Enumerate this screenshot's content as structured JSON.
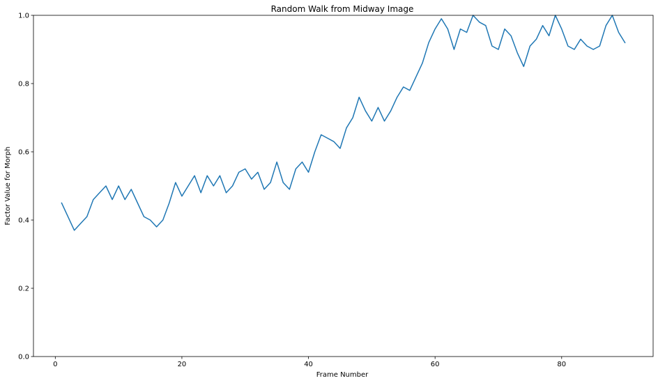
{
  "chart_data": {
    "type": "line",
    "title": "Random Walk from Midway Image",
    "xlabel": "Frame Number",
    "ylabel": "Factor Value for Morph",
    "xlim": [
      -3.45,
      94.45
    ],
    "ylim": [
      0.0,
      1.0
    ],
    "xticks": [
      0,
      20,
      40,
      60,
      80
    ],
    "xtick_labels": [
      "0",
      "20",
      "40",
      "60",
      "80"
    ],
    "yticks": [
      0.0,
      0.2,
      0.4,
      0.6,
      0.8,
      1.0
    ],
    "ytick_labels": [
      "0.0",
      "0.2",
      "0.4",
      "0.6",
      "0.8",
      "1.0"
    ],
    "grid": false,
    "series": [
      {
        "color": "#1f77b4",
        "x": [
          1,
          2,
          3,
          4,
          5,
          6,
          7,
          8,
          9,
          10,
          11,
          12,
          13,
          14,
          15,
          16,
          17,
          18,
          19,
          20,
          21,
          22,
          23,
          24,
          25,
          26,
          27,
          28,
          29,
          30,
          31,
          32,
          33,
          34,
          35,
          36,
          37,
          38,
          39,
          40,
          41,
          42,
          43,
          44,
          45,
          46,
          47,
          48,
          49,
          50,
          51,
          52,
          53,
          54,
          55,
          56,
          57,
          58,
          59,
          60,
          61,
          62,
          63,
          64,
          65,
          66,
          67,
          68,
          69,
          70,
          71,
          72,
          73,
          74,
          75,
          76,
          77,
          78,
          79,
          80,
          81,
          82,
          83,
          84,
          85,
          86,
          87,
          88,
          89,
          90
        ],
        "y": [
          0.45,
          0.41,
          0.37,
          0.39,
          0.41,
          0.46,
          0.48,
          0.5,
          0.46,
          0.5,
          0.46,
          0.49,
          0.45,
          0.41,
          0.4,
          0.38,
          0.4,
          0.45,
          0.51,
          0.47,
          0.5,
          0.53,
          0.48,
          0.53,
          0.5,
          0.53,
          0.48,
          0.5,
          0.54,
          0.55,
          0.52,
          0.54,
          0.49,
          0.51,
          0.57,
          0.51,
          0.49,
          0.55,
          0.57,
          0.54,
          0.6,
          0.65,
          0.64,
          0.63,
          0.61,
          0.67,
          0.7,
          0.76,
          0.72,
          0.69,
          0.73,
          0.69,
          0.72,
          0.76,
          0.79,
          0.78,
          0.82,
          0.86,
          0.92,
          0.96,
          0.99,
          0.96,
          0.9,
          0.96,
          0.95,
          1.0,
          0.98,
          0.97,
          0.91,
          0.9,
          0.96,
          0.94,
          0.89,
          0.85,
          0.91,
          0.93,
          0.97,
          0.94,
          1.0,
          0.96,
          0.91,
          0.9,
          0.93,
          0.91,
          0.9,
          0.91,
          0.97,
          1.0,
          0.95,
          0.92
        ]
      }
    ]
  }
}
